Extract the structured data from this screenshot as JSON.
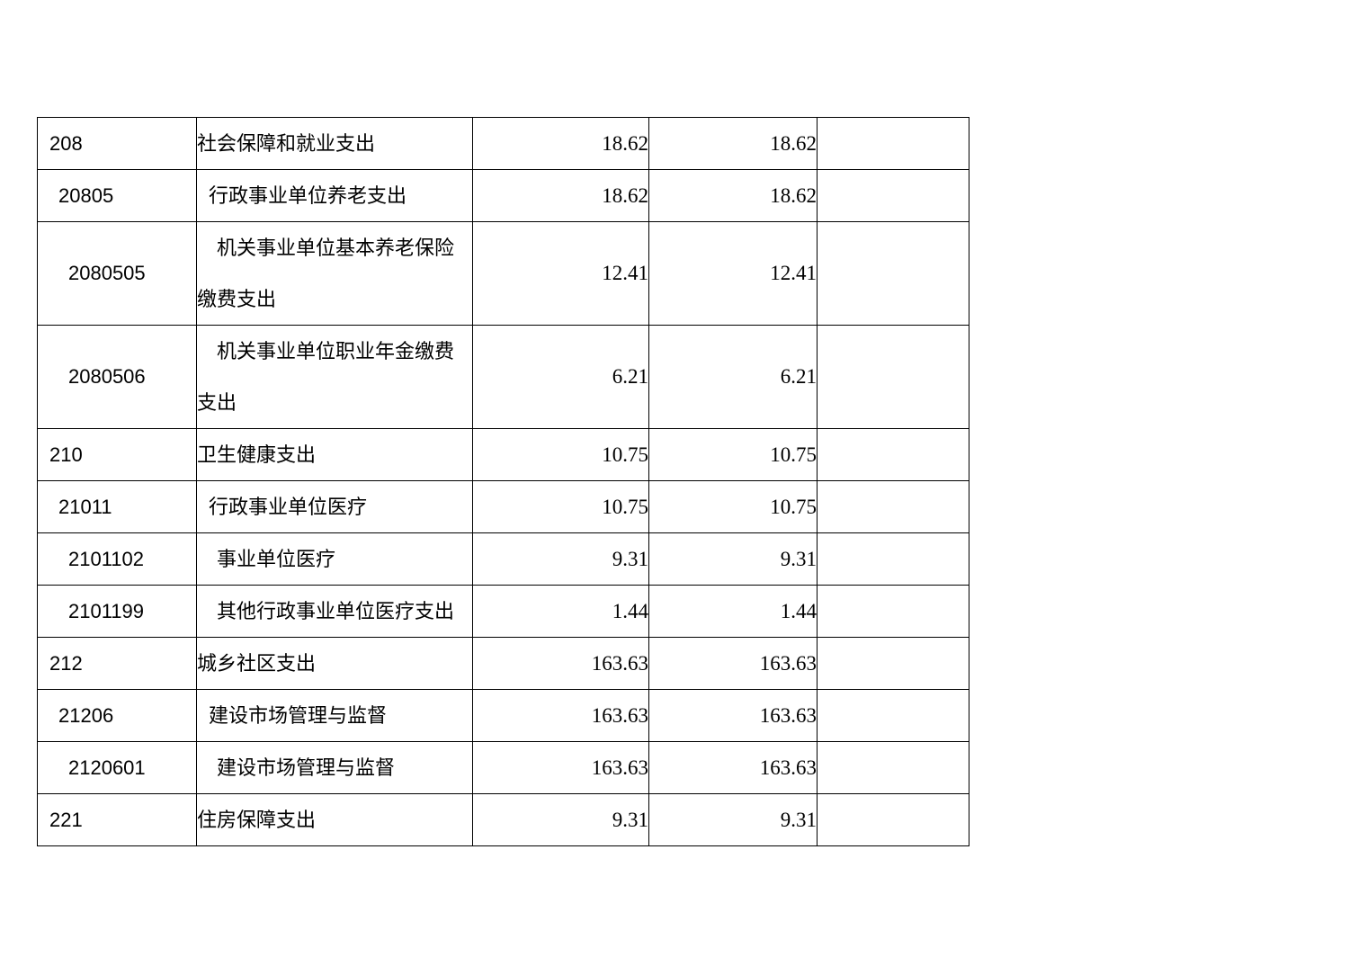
{
  "page": {
    "background_color": "#ffffff",
    "text_color": "#000000",
    "table_border_color": "#000000"
  },
  "table": {
    "description": "budget-expenditure-table-fragment",
    "columns": [
      "code",
      "name",
      "value1",
      "value2",
      "note"
    ],
    "rows": [
      {
        "level": 1,
        "wrapped": false,
        "code": "208",
        "name": "社会保障和就业支出",
        "value1": "18.62",
        "value2": "18.62",
        "note": ""
      },
      {
        "level": 2,
        "wrapped": false,
        "code": "20805",
        "name": "行政事业单位养老支出",
        "value1": "18.62",
        "value2": "18.62",
        "note": ""
      },
      {
        "level": 3,
        "wrapped": true,
        "code": "2080505",
        "name": "机关事业单位基本养老保险缴费支出",
        "value1": "12.41",
        "value2": "12.41",
        "note": ""
      },
      {
        "level": 3,
        "wrapped": true,
        "code": "2080506",
        "name": "机关事业单位职业年金缴费支出",
        "value1": "6.21",
        "value2": "6.21",
        "note": ""
      },
      {
        "level": 1,
        "wrapped": false,
        "code": "210",
        "name": "卫生健康支出",
        "value1": "10.75",
        "value2": "10.75",
        "note": ""
      },
      {
        "level": 2,
        "wrapped": false,
        "code": "21011",
        "name": "行政事业单位医疗",
        "value1": "10.75",
        "value2": "10.75",
        "note": ""
      },
      {
        "level": 3,
        "wrapped": false,
        "code": "2101102",
        "name": "事业单位医疗",
        "value1": "9.31",
        "value2": "9.31",
        "note": ""
      },
      {
        "level": 3,
        "wrapped": false,
        "code": "2101199",
        "name": "其他行政事业单位医疗支出",
        "value1": "1.44",
        "value2": "1.44",
        "note": ""
      },
      {
        "level": 1,
        "wrapped": false,
        "code": "212",
        "name": "城乡社区支出",
        "value1": "163.63",
        "value2": "163.63",
        "note": ""
      },
      {
        "level": 2,
        "wrapped": false,
        "code": "21206",
        "name": "建设市场管理与监督",
        "value1": "163.63",
        "value2": "163.63",
        "note": ""
      },
      {
        "level": 3,
        "wrapped": false,
        "code": "2120601",
        "name": "建设市场管理与监督",
        "value1": "163.63",
        "value2": "163.63",
        "note": ""
      },
      {
        "level": 1,
        "wrapped": false,
        "code": "221",
        "name": "住房保障支出",
        "value1": "9.31",
        "value2": "9.31",
        "note": ""
      }
    ]
  }
}
